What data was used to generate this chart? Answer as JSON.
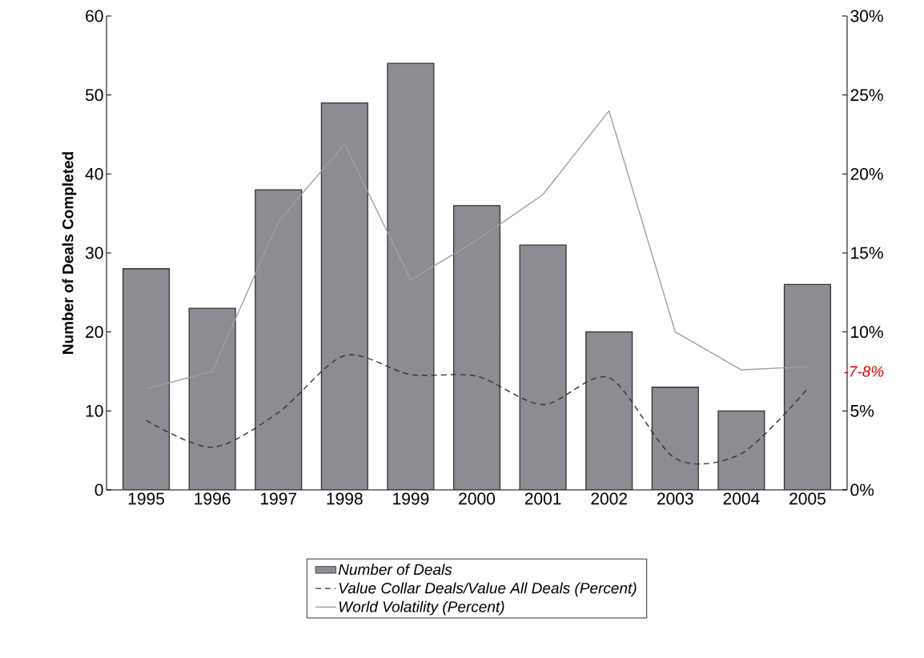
{
  "chart_data": {
    "type": "bar",
    "categories": [
      "1995",
      "1996",
      "1997",
      "1998",
      "1999",
      "2000",
      "2001",
      "2002",
      "2003",
      "2004",
      "2005"
    ],
    "ylabel": "Number of Deals Completed",
    "series": [
      {
        "name": "Number of Deals",
        "color": "#8e8c92",
        "values": [
          28,
          23,
          38,
          49,
          54,
          36,
          31,
          20,
          13,
          10,
          26
        ]
      },
      {
        "name": "Value Collar Deals/Value All Deals (Percent)",
        "type": "line",
        "axis": "y2",
        "line_style": "dashed",
        "color": "#333333",
        "values": [
          4.4,
          2.7,
          4.9,
          8.5,
          7.3,
          7.2,
          5.4,
          7.1,
          2.0,
          2.3,
          6.4
        ]
      },
      {
        "name": "World Volatility (Percent)",
        "type": "line",
        "axis": "y2",
        "line_style": "solid",
        "color": "#a0a0a0",
        "values": [
          6.4,
          7.5,
          17.0,
          21.9,
          13.3,
          15.8,
          18.7,
          24.0,
          10.0,
          7.6,
          7.8
        ]
      }
    ],
    "ylim": [
      0,
      60
    ],
    "yticks": [
      0,
      10,
      20,
      30,
      40,
      50,
      60
    ],
    "y2lim": [
      0,
      30
    ],
    "y2ticks": [
      {
        "value": 0,
        "label": "0%"
      },
      {
        "value": 5,
        "label": "5%"
      },
      {
        "value": 10,
        "label": "10%"
      },
      {
        "value": 15,
        "label": "15%"
      },
      {
        "value": 20,
        "label": "20%"
      },
      {
        "value": 25,
        "label": "25%"
      },
      {
        "value": 30,
        "label": "30%"
      }
    ],
    "legend": "bottom",
    "annotations": [
      "-7-8%"
    ]
  }
}
